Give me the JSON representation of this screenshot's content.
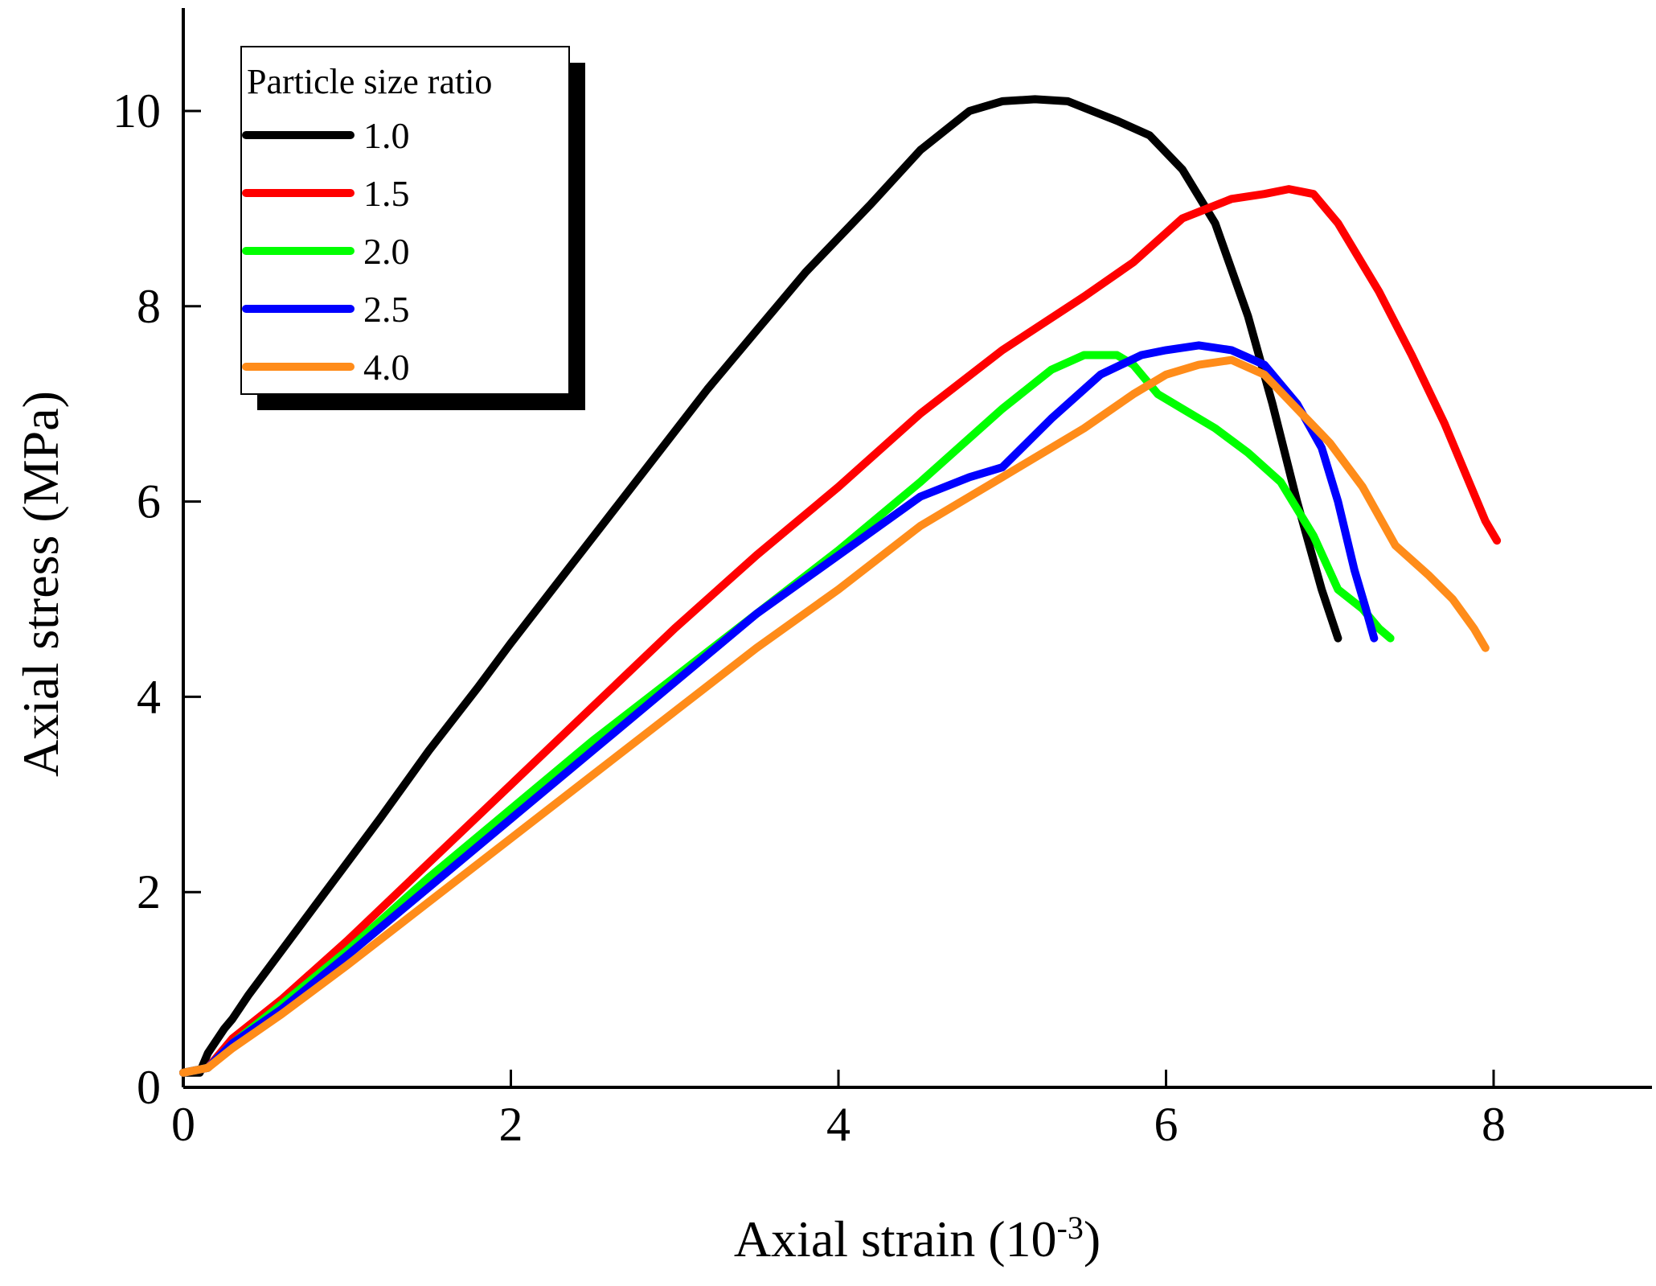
{
  "chart_data": {
    "type": "line",
    "title": "",
    "xlabel": "Axial strain (10",
    "xlabel_sup": "-3",
    "xlabel_close": ")",
    "ylabel": "Axial stress (MPa)",
    "xlim": [
      0,
      9
    ],
    "ylim": [
      0,
      11
    ],
    "xticks": [
      "0",
      "2",
      "4",
      "6",
      "8"
    ],
    "yticks": [
      "0",
      "2",
      "4",
      "6",
      "8",
      "10"
    ],
    "grid": false,
    "legend": {
      "title": "Particle size ratio",
      "placement": "top-left"
    },
    "series": [
      {
        "name": "1.0",
        "color": "#000000",
        "x": [
          0.0,
          0.1,
          0.15,
          0.25,
          0.3,
          0.4,
          0.6,
          0.8,
          1.0,
          1.2,
          1.5,
          1.8,
          2.0,
          2.3,
          2.6,
          2.9,
          3.2,
          3.5,
          3.6,
          3.8,
          4.0,
          4.2,
          4.5,
          4.8,
          5.0,
          5.2,
          5.4,
          5.55,
          5.7,
          5.9,
          6.1,
          6.3,
          6.5,
          6.65,
          6.8,
          6.95,
          7.05
        ],
        "y": [
          0.15,
          0.15,
          0.35,
          0.6,
          0.7,
          0.95,
          1.4,
          1.85,
          2.3,
          2.75,
          3.45,
          4.1,
          4.55,
          5.2,
          5.85,
          6.5,
          7.15,
          7.75,
          7.95,
          8.35,
          8.7,
          9.05,
          9.6,
          10.0,
          10.1,
          10.12,
          10.1,
          10.0,
          9.9,
          9.75,
          9.4,
          8.85,
          7.9,
          7.0,
          6.0,
          5.1,
          4.6
        ]
      },
      {
        "name": "1.5",
        "color": "#ff0000",
        "x": [
          0.0,
          0.15,
          0.3,
          0.6,
          1.0,
          1.5,
          2.0,
          2.5,
          3.0,
          3.5,
          4.0,
          4.5,
          5.0,
          5.5,
          5.8,
          6.1,
          6.4,
          6.6,
          6.75,
          6.9,
          7.05,
          7.3,
          7.5,
          7.7,
          7.85,
          7.95,
          8.02
        ],
        "y": [
          0.15,
          0.2,
          0.5,
          0.9,
          1.5,
          2.3,
          3.1,
          3.9,
          4.7,
          5.45,
          6.15,
          6.9,
          7.55,
          8.1,
          8.45,
          8.9,
          9.1,
          9.15,
          9.2,
          9.15,
          8.85,
          8.15,
          7.5,
          6.8,
          6.2,
          5.8,
          5.6
        ]
      },
      {
        "name": "2.0",
        "color": "#00ff00",
        "x": [
          0.0,
          0.15,
          0.3,
          0.6,
          1.0,
          1.5,
          2.0,
          2.5,
          3.0,
          3.5,
          4.0,
          4.5,
          5.0,
          5.3,
          5.5,
          5.7,
          5.8,
          5.95,
          6.1,
          6.3,
          6.5,
          6.7,
          6.9,
          7.05,
          7.2,
          7.3,
          7.37
        ],
        "y": [
          0.15,
          0.2,
          0.45,
          0.85,
          1.4,
          2.15,
          2.85,
          3.55,
          4.2,
          4.85,
          5.5,
          6.2,
          6.95,
          7.35,
          7.5,
          7.5,
          7.4,
          7.1,
          6.95,
          6.75,
          6.5,
          6.2,
          5.65,
          5.1,
          4.9,
          4.7,
          4.6
        ]
      },
      {
        "name": "2.5",
        "color": "#0000ff",
        "x": [
          0.0,
          0.15,
          0.3,
          0.6,
          1.0,
          1.5,
          2.0,
          2.5,
          3.0,
          3.5,
          4.0,
          4.5,
          4.8,
          5.0,
          5.3,
          5.6,
          5.85,
          6.0,
          6.2,
          6.4,
          6.6,
          6.8,
          6.95,
          7.05,
          7.15,
          7.22,
          7.27
        ],
        "y": [
          0.15,
          0.2,
          0.45,
          0.8,
          1.35,
          2.05,
          2.75,
          3.45,
          4.15,
          4.85,
          5.45,
          6.05,
          6.25,
          6.35,
          6.85,
          7.3,
          7.5,
          7.55,
          7.6,
          7.55,
          7.4,
          7.0,
          6.55,
          6.0,
          5.3,
          4.9,
          4.6
        ]
      },
      {
        "name": "4.0",
        "color": "#ff8c1a",
        "x": [
          0.0,
          0.15,
          0.3,
          0.6,
          1.0,
          1.5,
          2.0,
          2.5,
          3.0,
          3.5,
          4.0,
          4.5,
          5.0,
          5.5,
          5.8,
          6.0,
          6.2,
          6.4,
          6.6,
          6.8,
          7.0,
          7.2,
          7.4,
          7.6,
          7.75,
          7.88,
          7.95
        ],
        "y": [
          0.15,
          0.2,
          0.4,
          0.75,
          1.25,
          1.9,
          2.55,
          3.2,
          3.85,
          4.5,
          5.1,
          5.75,
          6.25,
          6.75,
          7.1,
          7.3,
          7.4,
          7.45,
          7.3,
          6.95,
          6.6,
          6.15,
          5.55,
          5.25,
          5.0,
          4.7,
          4.5
        ]
      }
    ]
  }
}
